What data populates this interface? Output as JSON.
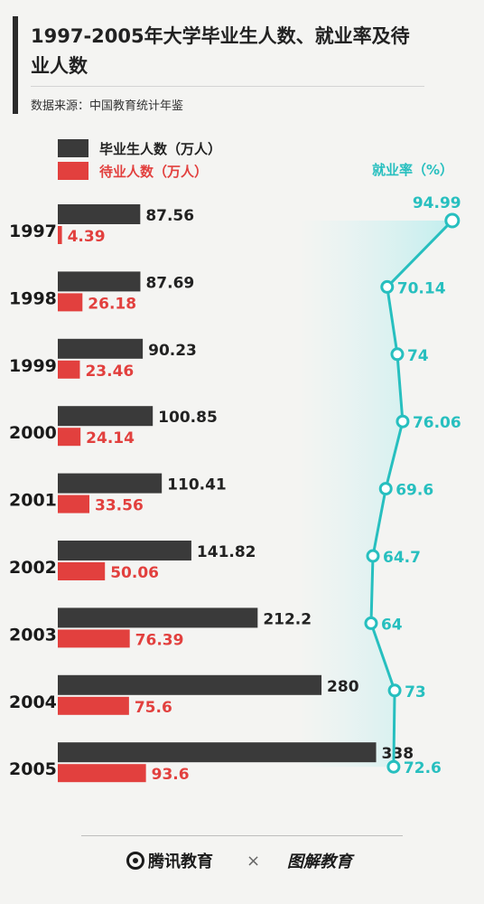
{
  "header": {
    "title": "1997-2005年大学毕业生人数、就业率及待业人数",
    "source": "数据来源：中国教育统计年鉴"
  },
  "footer": {
    "brand_left": "腾讯教育",
    "separator": "×",
    "brand_right": "图解教育"
  },
  "colors": {
    "graduates": "#3a3a3a",
    "unemployed": "#e2403e",
    "rate": "#27bfbf",
    "rate_fill": "#bfeeee"
  },
  "chart_data": {
    "type": "bar",
    "orientation": "horizontal",
    "categories": [
      "1997",
      "1998",
      "1999",
      "2000",
      "2001",
      "2002",
      "2003",
      "2004",
      "2005"
    ],
    "series": [
      {
        "name": "毕业生人数（万人）",
        "values": [
          87.56,
          87.69,
          90.23,
          100.85,
          110.41,
          141.82,
          212.2,
          280,
          338
        ]
      },
      {
        "name": "待业人数（万人）",
        "values": [
          4.39,
          26.18,
          23.46,
          24.14,
          33.56,
          50.06,
          76.39,
          75.6,
          93.6
        ]
      }
    ],
    "value_labels": {
      "graduates": [
        "87.56",
        "87.69",
        "90.23",
        "100.85",
        "110.41",
        "141.82",
        "212.2",
        "280",
        "338"
      ],
      "unemployed": [
        "4.39",
        "26.18",
        "23.46",
        "24.14",
        "33.56",
        "50.06",
        "76.39",
        "75.6",
        "93.6"
      ]
    },
    "line_series": {
      "name": "就业率（%）",
      "type": "line",
      "values": [
        94.99,
        70.14,
        74,
        76.06,
        69.6,
        64.7,
        64,
        73,
        72.6
      ],
      "labels": [
        "94.99",
        "70.14",
        "74",
        "76.06",
        "69.6",
        "64.7",
        "64",
        "73",
        "72.6"
      ]
    },
    "legend_position": "top-left",
    "grid": false
  }
}
